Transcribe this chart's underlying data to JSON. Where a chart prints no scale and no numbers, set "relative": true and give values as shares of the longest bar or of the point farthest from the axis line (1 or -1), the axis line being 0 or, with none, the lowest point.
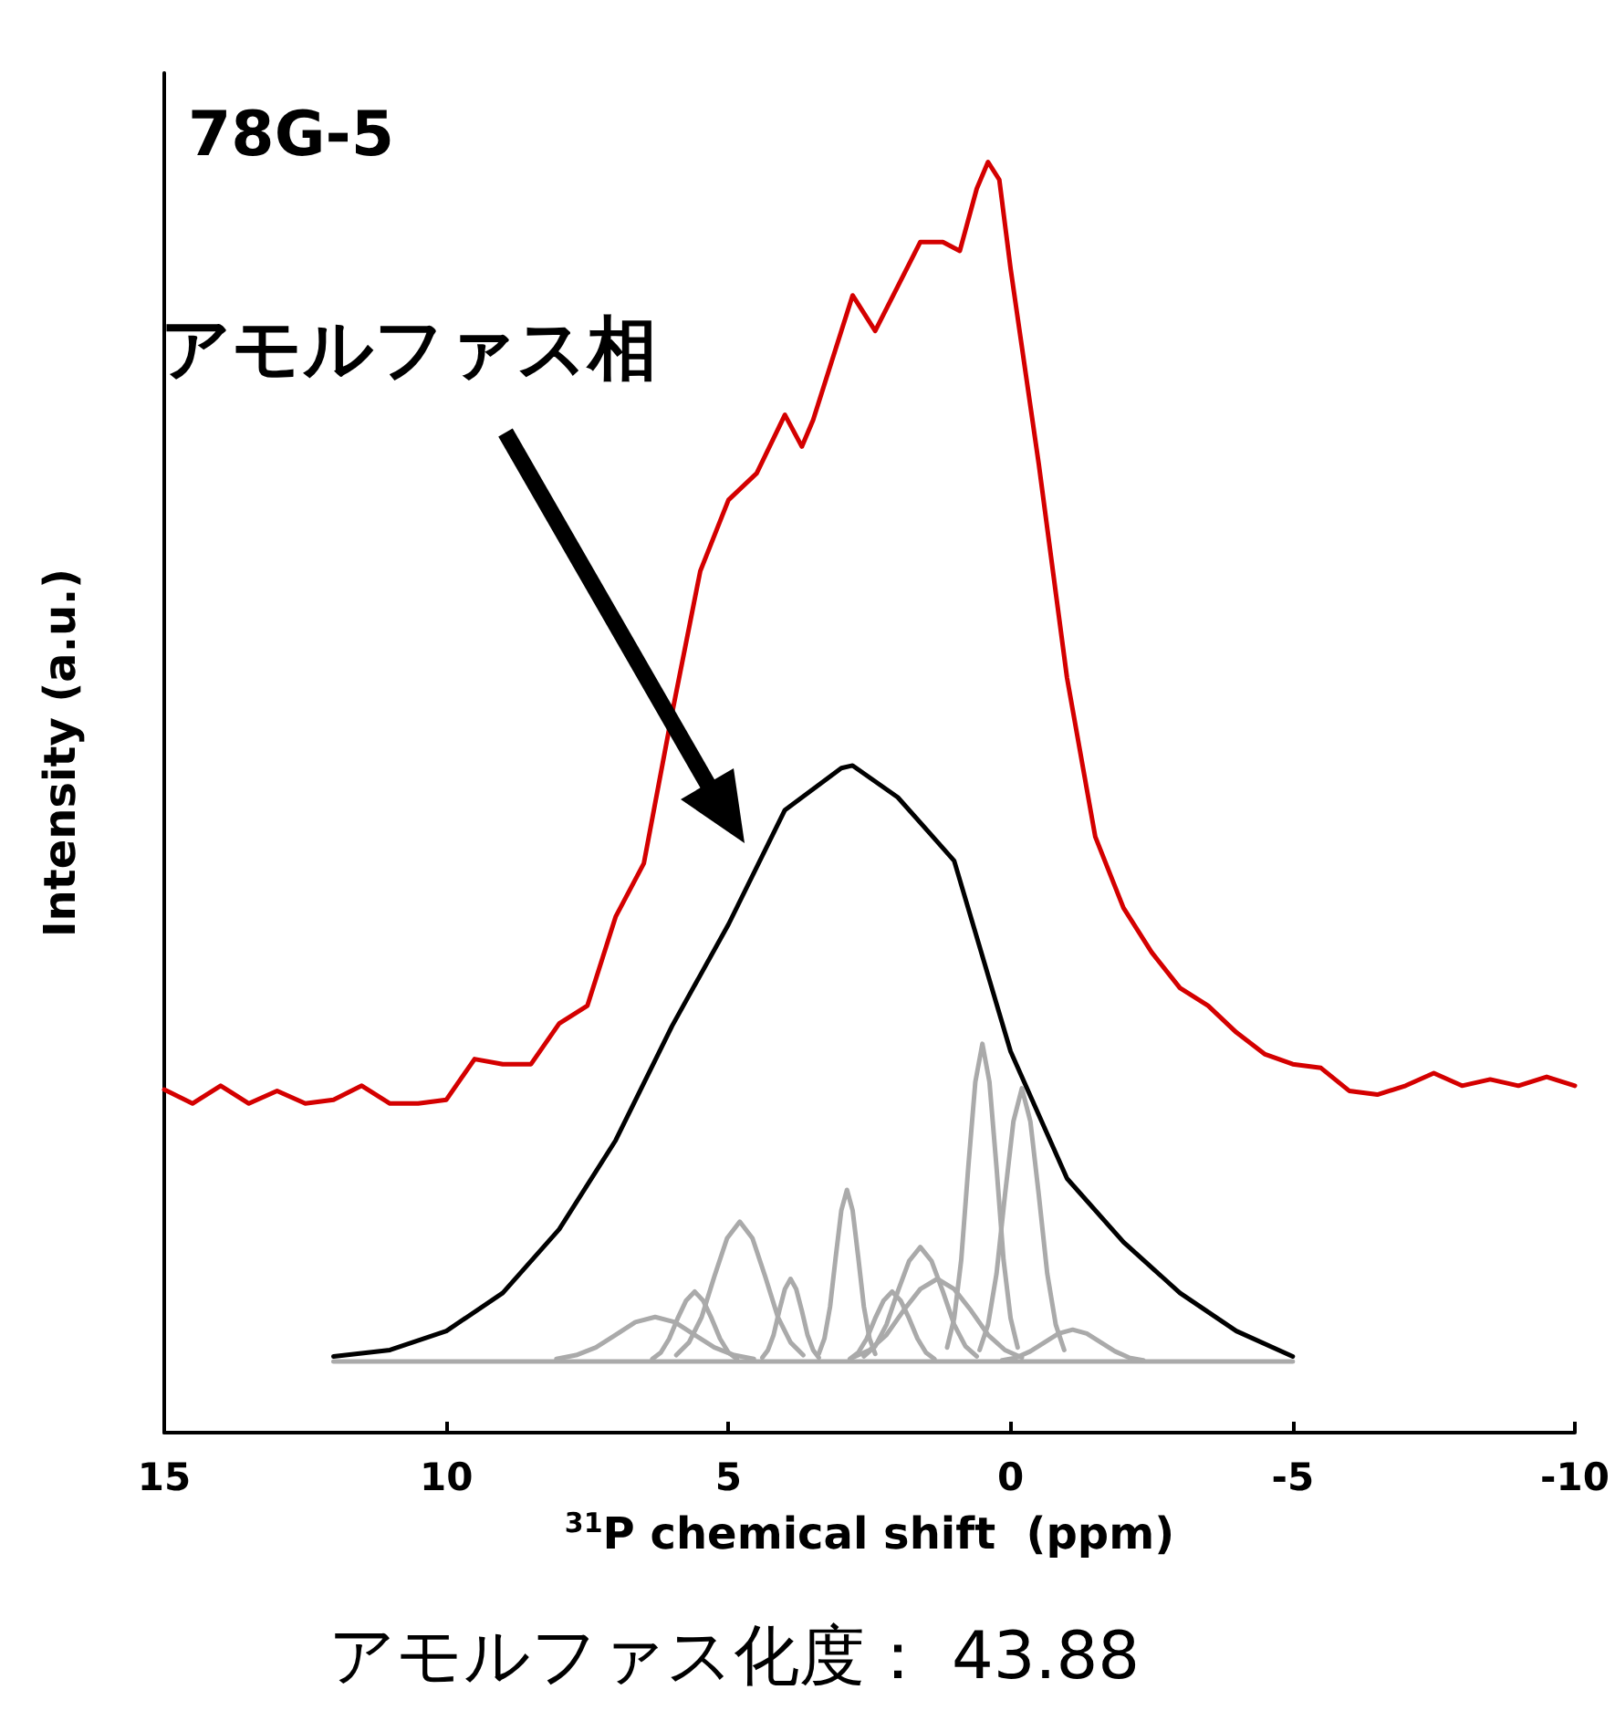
{
  "chart_data": {
    "type": "line",
    "title": "78G-5",
    "xlabel": "$^{31}$P chemical shift  (ppm)",
    "ylabel": "Intensity (a.u.)",
    "relative": true,
    "annotations": [
      "アモルファス相",
      "アモルファス化度： 43.88"
    ],
    "xlim": [
      15,
      -10
    ],
    "xticks": [
      15,
      10,
      5,
      0,
      -5,
      -10
    ],
    "grid": false,
    "marker": "none",
    "line_style": "solid",
    "series": [
      {
        "color": "#d40000",
        "x": [
          15,
          14.5,
          14,
          13.5,
          13,
          12.5,
          12,
          11.5,
          11,
          10.5,
          10,
          9.5,
          9,
          8.5,
          8,
          7.5,
          7,
          6.5,
          6,
          5.5,
          5,
          4.5,
          4,
          3.7,
          3.5,
          3,
          2.8,
          2.4,
          2,
          1.6,
          1.2,
          0.9,
          0.6,
          0.4,
          0.2,
          0,
          -0.5,
          -1,
          -1.5,
          -2,
          -2.5,
          -3,
          -3.5,
          -4,
          -4.5,
          -5,
          -5.5,
          -6,
          -6.5,
          -7,
          -7.5,
          -8,
          -8.5,
          -9,
          -9.5,
          -10
        ],
        "values": [
          0.27,
          0.259,
          0.273,
          0.259,
          0.269,
          0.259,
          0.262,
          0.273,
          0.259,
          0.259,
          0.262,
          0.294,
          0.29,
          0.29,
          0.322,
          0.336,
          0.406,
          0.448,
          0.566,
          0.678,
          0.734,
          0.755,
          0.801,
          0.776,
          0.797,
          0.867,
          0.895,
          0.867,
          0.902,
          0.937,
          0.937,
          0.93,
          0.979,
          1.0,
          0.986,
          0.916,
          0.762,
          0.594,
          0.469,
          0.413,
          0.378,
          0.35,
          0.336,
          0.315,
          0.298,
          0.29,
          0.287,
          0.269,
          0.266,
          0.273,
          0.283,
          0.273,
          0.278,
          0.273,
          0.28,
          0.273
        ]
      },
      {
        "color": "#000000",
        "x": [
          12,
          11,
          10,
          9,
          8,
          7,
          6,
          5,
          4,
          3,
          2.8,
          2,
          1,
          0,
          -1,
          -2,
          -3,
          -4,
          -5
        ],
        "values": [
          0.06,
          0.065,
          0.08,
          0.11,
          0.16,
          0.23,
          0.32,
          0.4,
          0.49,
          0.523,
          0.525,
          0.5,
          0.45,
          0.3,
          0.2,
          0.15,
          0.11,
          0.08,
          0.06
        ]
      },
      {
        "color": "#aaaaaa",
        "x": [
          12,
          -5
        ],
        "values": [
          0.056,
          0.056
        ]
      },
      {
        "color": "#aaaaaa",
        "x": [
          8.05,
          7.7,
          7.35,
          7.0,
          6.65,
          6.3,
          5.95,
          5.6,
          5.25,
          4.9,
          4.55
        ],
        "values": [
          0.058,
          0.061,
          0.067,
          0.077,
          0.087,
          0.091,
          0.087,
          0.077,
          0.067,
          0.061,
          0.058
        ]
      },
      {
        "color": "#aaaaaa",
        "x": [
          6.35,
          6.2,
          6.05,
          5.9,
          5.75,
          5.6,
          5.45,
          5.3,
          5.15,
          5.0,
          4.85
        ],
        "values": [
          0.058,
          0.063,
          0.074,
          0.09,
          0.104,
          0.111,
          0.104,
          0.09,
          0.074,
          0.063,
          0.058
        ]
      },
      {
        "color": "#aaaaaa",
        "x": [
          5.925,
          5.7,
          5.475,
          5.25,
          5.025,
          4.8,
          4.575,
          4.35,
          4.125,
          3.9,
          3.675
        ],
        "values": [
          0.061,
          0.071,
          0.091,
          0.123,
          0.153,
          0.166,
          0.153,
          0.123,
          0.091,
          0.071,
          0.061
        ]
      },
      {
        "color": "#aaaaaa",
        "x": [
          4.4,
          4.3,
          4.2,
          4.1,
          4.0,
          3.9,
          3.8,
          3.7,
          3.6,
          3.5,
          3.4
        ],
        "values": [
          0.059,
          0.065,
          0.077,
          0.096,
          0.113,
          0.121,
          0.113,
          0.096,
          0.077,
          0.065,
          0.059
        ]
      },
      {
        "color": "#aaaaaa",
        "x": [
          3.4,
          3.3,
          3.2,
          3.1,
          3.0,
          2.9,
          2.8,
          2.7,
          2.6,
          2.5,
          2.4
        ],
        "values": [
          0.062,
          0.074,
          0.099,
          0.138,
          0.175,
          0.191,
          0.175,
          0.138,
          0.099,
          0.074,
          0.062
        ]
      },
      {
        "color": "#aaaaaa",
        "x": [
          2.85,
          2.7,
          2.55,
          2.4,
          2.25,
          2.1,
          1.95,
          1.8,
          1.65,
          1.5,
          1.35
        ],
        "values": [
          0.058,
          0.063,
          0.074,
          0.09,
          0.104,
          0.111,
          0.104,
          0.09,
          0.074,
          0.063,
          0.058
        ]
      },
      {
        "color": "#aaaaaa",
        "x": [
          2.6,
          2.4,
          2.2,
          2.0,
          1.8,
          1.6,
          1.4,
          1.2,
          1.0,
          0.8,
          0.6
        ],
        "values": [
          0.06,
          0.068,
          0.085,
          0.111,
          0.135,
          0.146,
          0.135,
          0.111,
          0.085,
          0.068,
          0.06
        ]
      },
      {
        "color": "#aaaaaa",
        "x": [
          2.8,
          2.5,
          2.2,
          1.9,
          1.6,
          1.3,
          1.0,
          0.7,
          0.4,
          0.1,
          -0.2
        ],
        "values": [
          0.059,
          0.065,
          0.077,
          0.096,
          0.113,
          0.121,
          0.113,
          0.096,
          0.077,
          0.065,
          0.059
        ]
      },
      {
        "color": "#aaaaaa",
        "x": [
          1.125,
          1.0,
          0.875,
          0.75,
          0.625,
          0.5,
          0.375,
          0.25,
          0.125,
          0,
          -0.125
        ],
        "values": [
          0.067,
          0.09,
          0.136,
          0.209,
          0.276,
          0.306,
          0.276,
          0.209,
          0.136,
          0.09,
          0.067
        ]
      },
      {
        "color": "#aaaaaa",
        "x": [
          0.55,
          0.4,
          0.25,
          0.1,
          -0.05,
          -0.2,
          -0.35,
          -0.5,
          -0.65,
          -0.8,
          -0.95
        ],
        "values": [
          0.065,
          0.085,
          0.125,
          0.187,
          0.245,
          0.271,
          0.245,
          0.187,
          0.125,
          0.085,
          0.065
        ]
      },
      {
        "color": "#aaaaaa",
        "x": [
          0.15,
          -0.1,
          -0.35,
          -0.6,
          -0.85,
          -1.1,
          -1.35,
          -1.6,
          -1.85,
          -2.1,
          -2.35
        ],
        "values": [
          0.057,
          0.059,
          0.064,
          0.071,
          0.078,
          0.081,
          0.078,
          0.071,
          0.064,
          0.059,
          0.057
        ]
      }
    ]
  }
}
